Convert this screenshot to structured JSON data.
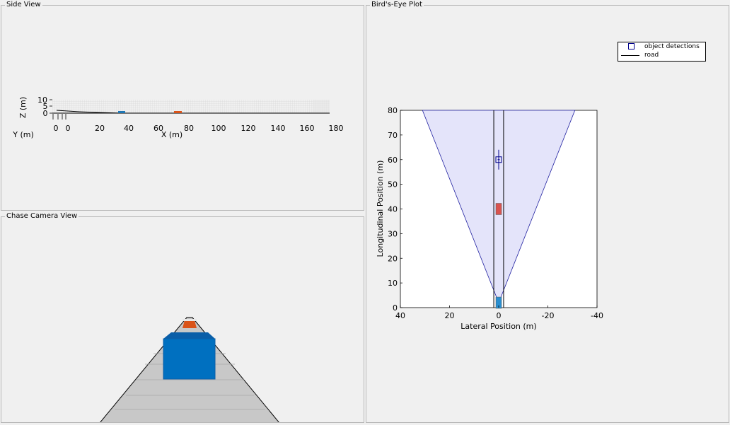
{
  "panels": {
    "side_view": "Side View",
    "chase_view": "Chase Camera View",
    "birds_eye": "Bird's-Eye Plot"
  },
  "side_view": {
    "zlabel": "Z (m)",
    "ylabel": "Y (m)",
    "xlabel": "X (m)",
    "z_ticks": [
      "10",
      "5",
      "0"
    ],
    "y_ticks": [
      "0",
      "0"
    ],
    "x_ticks": [
      "20",
      "40",
      "60",
      "80",
      "100",
      "120",
      "140",
      "160",
      "180"
    ]
  },
  "birds_eye": {
    "legend": {
      "detections": "object detections",
      "road": "road"
    }
  },
  "chart_data": {
    "type": "scatter",
    "xlabel": "Lateral Position (m)",
    "ylabel": "Longitudinal Position (m)",
    "xlim": [
      40,
      -40
    ],
    "ylim": [
      0,
      80
    ],
    "x_ticks": [
      "40",
      "20",
      "0",
      "-20",
      "-40"
    ],
    "y_ticks": [
      "0",
      "10",
      "20",
      "30",
      "40",
      "50",
      "60",
      "70",
      "80"
    ],
    "series": [
      {
        "name": "object detections",
        "points": [
          {
            "x": 0,
            "y": 60
          }
        ]
      }
    ],
    "road_edges_lateral": [
      2,
      -2
    ],
    "coverage_area": {
      "apex": [
        0,
        2
      ],
      "far_edges": [
        {
          "x": 31,
          "y": 80
        },
        {
          "x": -31,
          "y": 80
        }
      ]
    },
    "vehicles": [
      {
        "x": 0,
        "y": 40,
        "color": "#d9534f"
      },
      {
        "x": 0,
        "y": 2,
        "color": "#2a8fd0"
      }
    ],
    "colors": {
      "coverage": "#e4e4fa",
      "detection": "#00008b"
    }
  }
}
